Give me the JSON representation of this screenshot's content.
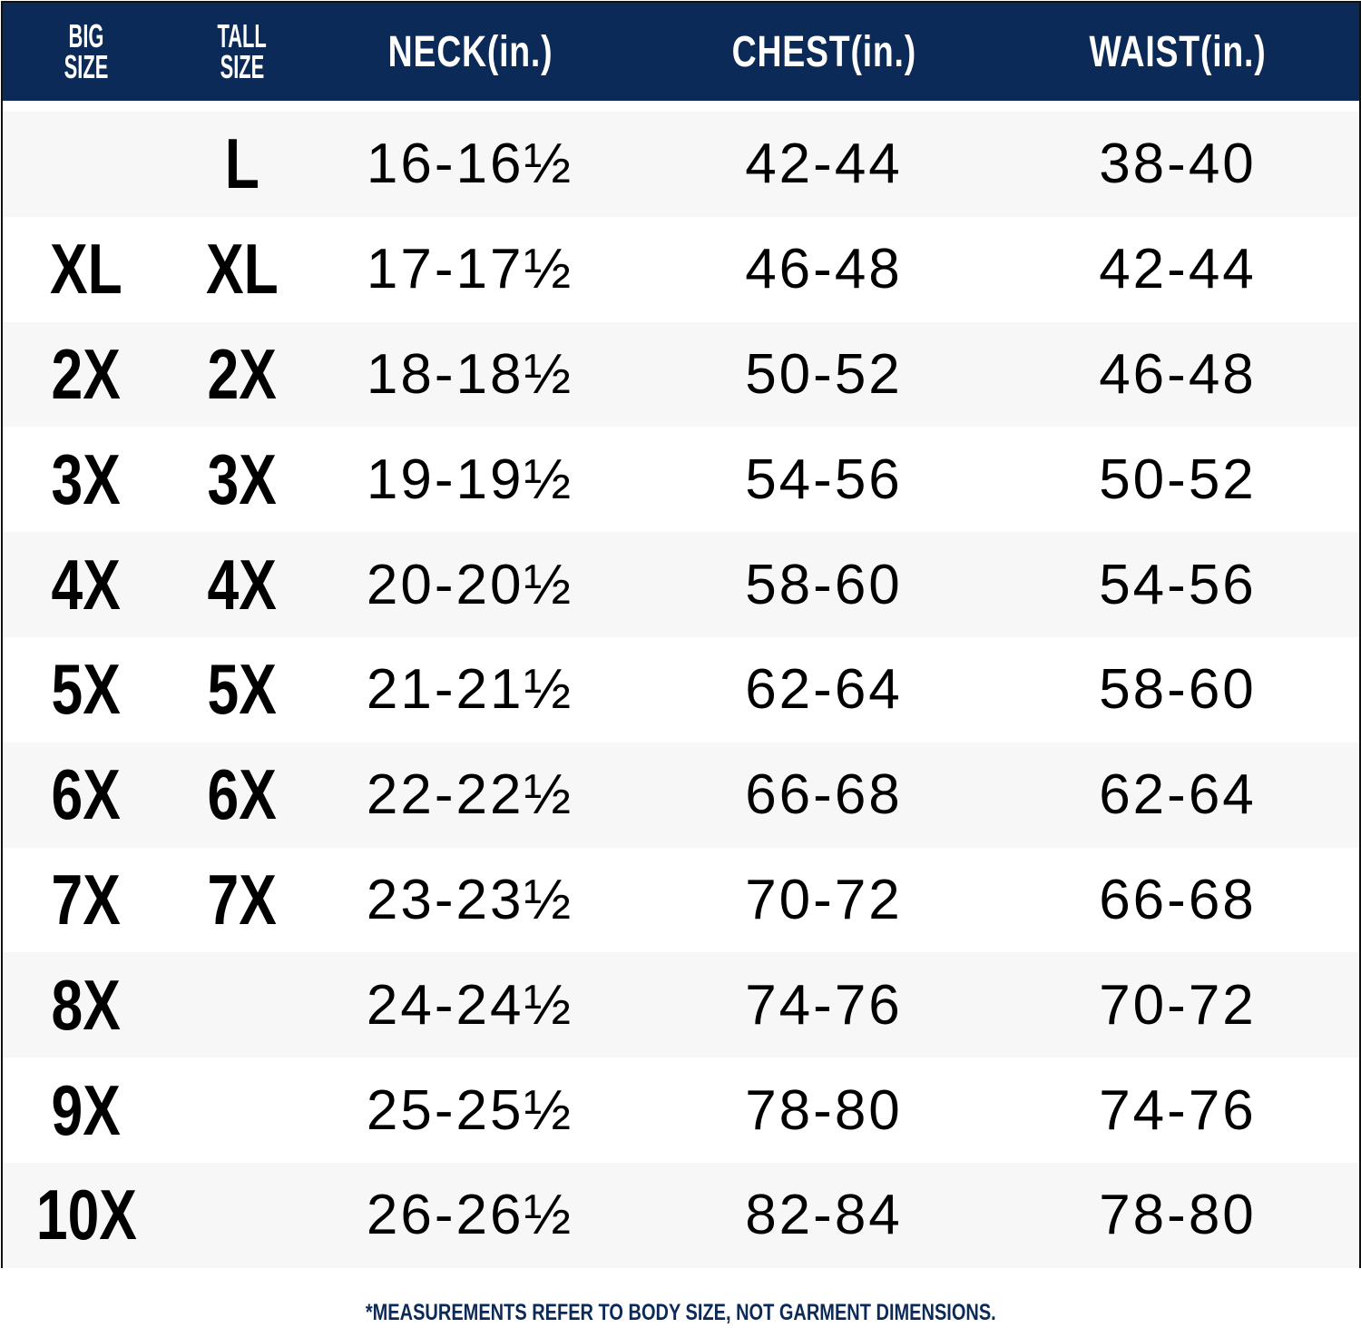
{
  "header": {
    "columns": [
      "BIG SIZE",
      "TALL SIZE",
      "NECK(in.)",
      "CHEST(in.)",
      "WAIST(in.)"
    ],
    "big_line1": "BIG",
    "big_line2": "SIZE",
    "tall_line1": "TALL",
    "tall_line2": "SIZE"
  },
  "colors": {
    "header_bg": "#0c2a57",
    "header_text": "#ffffff",
    "row_alt": "#f7f7f7"
  },
  "rows": [
    {
      "big": "",
      "tall": "L",
      "neck": "16-16½",
      "chest": "42-44",
      "waist": "38-40"
    },
    {
      "big": "XL",
      "tall": "XL",
      "neck": "17-17½",
      "chest": "46-48",
      "waist": "42-44"
    },
    {
      "big": "2X",
      "tall": "2X",
      "neck": "18-18½",
      "chest": "50-52",
      "waist": "46-48"
    },
    {
      "big": "3X",
      "tall": "3X",
      "neck": "19-19½",
      "chest": "54-56",
      "waist": "50-52"
    },
    {
      "big": "4X",
      "tall": "4X",
      "neck": "20-20½",
      "chest": "58-60",
      "waist": "54-56"
    },
    {
      "big": "5X",
      "tall": "5X",
      "neck": "21-21½",
      "chest": "62-64",
      "waist": "58-60"
    },
    {
      "big": "6X",
      "tall": "6X",
      "neck": "22-22½",
      "chest": "66-68",
      "waist": "62-64"
    },
    {
      "big": "7X",
      "tall": "7X",
      "neck": "23-23½",
      "chest": "70-72",
      "waist": "66-68"
    },
    {
      "big": "8X",
      "tall": "",
      "neck": "24-24½",
      "chest": "74-76",
      "waist": "70-72"
    },
    {
      "big": "9X",
      "tall": "",
      "neck": "25-25½",
      "chest": "78-80",
      "waist": "74-76"
    },
    {
      "big": "10X",
      "tall": "",
      "neck": "26-26½",
      "chest": "82-84",
      "waist": "78-80"
    }
  ],
  "footer": "*MEASUREMENTS REFER TO BODY SIZE, NOT GARMENT DIMENSIONS."
}
